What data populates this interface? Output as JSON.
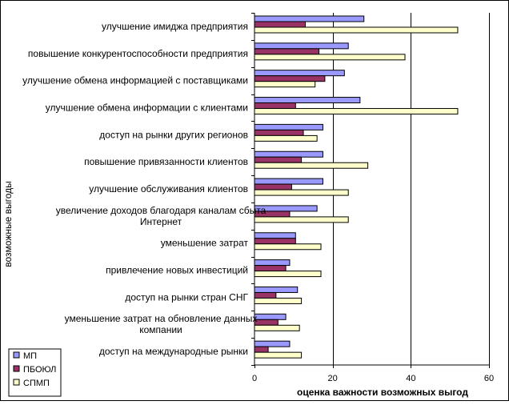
{
  "chart_data": {
    "type": "bar",
    "orientation": "horizontal",
    "categories": [
      "улучшение имиджа предприятия",
      "повышение конкурентоспособности предприятия",
      "улучшение обмена информацией с поставщиками",
      "улучшение обмена информации с клиентами",
      "доступ на рынки других регионов",
      "повышение привязанности клиентов",
      "улучшение обслуживания клиентов",
      "увеличение доходов благодаря каналам сбыта Интернет",
      "уменьшение затрат",
      "привлечение новых инвестиций",
      "доступ на рынки стран СНГ",
      "уменьшение затрат на обновление данных компании",
      "доступ на международные рынки"
    ],
    "category_lines": [
      [
        "улучшение имиджа предприятия"
      ],
      [
        "повышение конкурентоспособности предприятия"
      ],
      [
        "улучшение обмена информацией с поставщиками"
      ],
      [
        "улучшение обмена информации с клиентами"
      ],
      [
        "доступ на рынки других регионов"
      ],
      [
        "повышение привязанности клиентов"
      ],
      [
        "улучшение обслуживания клиентов"
      ],
      [
        "увеличение доходов благодаря каналам сбыта",
        "Интернет"
      ],
      [
        "уменьшение затрат"
      ],
      [
        "привлечение новых инвестиций"
      ],
      [
        "доступ на рынки стран СНГ"
      ],
      [
        "уменьшение затрат на обновление данных",
        "компании"
      ],
      [
        "доступ на международные рынки"
      ]
    ],
    "series": [
      {
        "name": "МП",
        "color": "#9999FF",
        "values": [
          28,
          24,
          23,
          27,
          17.5,
          17.5,
          17.5,
          16,
          10.5,
          9,
          11,
          8,
          9
        ]
      },
      {
        "name": "ПБОЮЛ",
        "color": "#993366",
        "values": [
          13,
          16.5,
          18,
          10.5,
          12.5,
          12,
          9.5,
          9,
          10.5,
          8,
          5.5,
          6,
          3.5
        ]
      },
      {
        "name": "СПМП",
        "color": "#FFFFCC",
        "values": [
          52,
          38.5,
          15.5,
          52,
          16,
          29,
          24,
          24,
          17,
          17,
          12,
          11.5,
          12
        ]
      }
    ],
    "xlabel": "оценка важности возможных выгод",
    "ylabel": "возможные выгоды",
    "xlim": [
      0,
      60
    ],
    "xticks": [
      "0",
      "20",
      "40",
      "60"
    ],
    "grid": "vertical major gridlines",
    "legend": "bottom-left"
  }
}
